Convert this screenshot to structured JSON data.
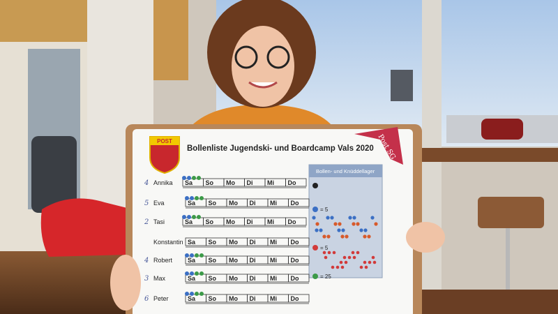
{
  "sign": {
    "logo": "POST",
    "title": "Bollenliste Jugendski- und Boardcamp Vals 2020",
    "badge": "Post SG"
  },
  "days": [
    "Sa",
    "So",
    "Mo",
    "Di",
    "Mi",
    "Do"
  ],
  "rows": [
    {
      "name": "Annika",
      "note": "4"
    },
    {
      "name": "Eva",
      "note": "5"
    },
    {
      "name": "Tasi",
      "note": "2"
    },
    {
      "name": "Konstantin"
    },
    {
      "name": "Robert",
      "note": "4"
    },
    {
      "name": "Max",
      "note": "3"
    },
    {
      "name": "Peter",
      "note": "6"
    }
  ],
  "legend": {
    "title": "Bollen- und Knüddellager",
    "rules": [
      "= 5",
      "= 5",
      "= 25"
    ]
  }
}
